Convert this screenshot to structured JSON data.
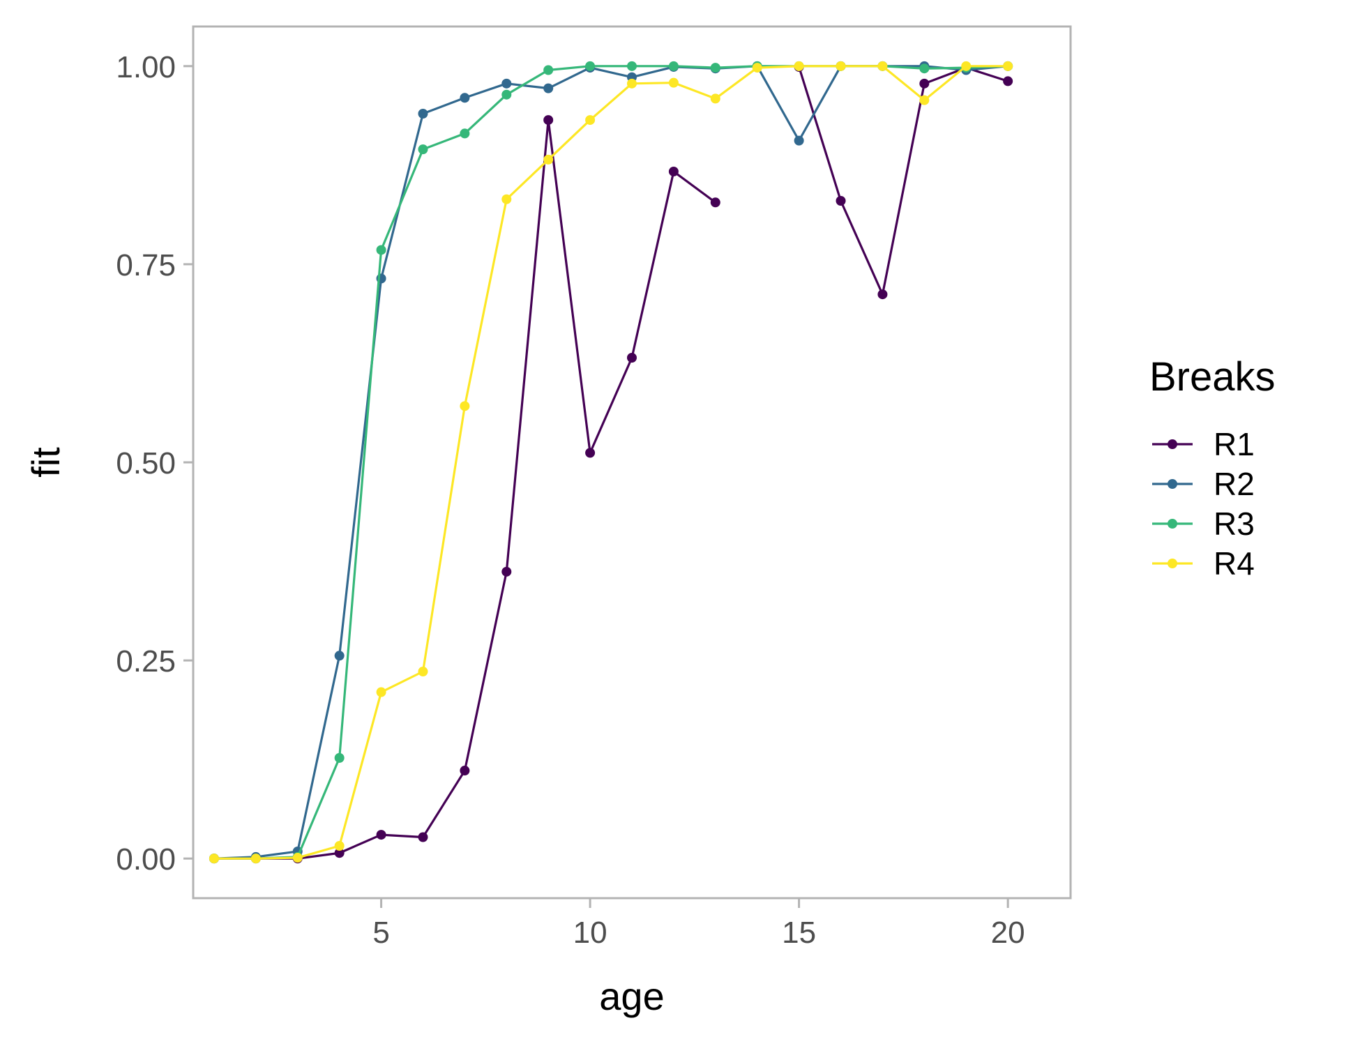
{
  "chart_data": {
    "type": "line",
    "xlabel": "age",
    "ylabel": "fit",
    "xlim": [
      0.5,
      21.5
    ],
    "ylim": [
      -0.05,
      1.05
    ],
    "xticks": [
      5,
      10,
      15,
      20
    ],
    "yticks": [
      0,
      0.25,
      0.5,
      0.75,
      1.0
    ],
    "ytick_labels": [
      "0.00",
      "0.25",
      "0.50",
      "0.75",
      "1.00"
    ],
    "grid": false,
    "legend": {
      "title": "Breaks",
      "position": "right"
    },
    "x": [
      1,
      2,
      3,
      4,
      5,
      6,
      7,
      8,
      9,
      10,
      11,
      12,
      13,
      14,
      15,
      16,
      17,
      18,
      19,
      20
    ],
    "series": [
      {
        "name": "R1",
        "color": "#440154",
        "values": [
          0.0,
          0.0,
          0.0,
          0.007,
          0.03,
          0.027,
          0.111,
          0.362,
          0.932,
          0.512,
          0.632,
          0.867,
          0.828,
          null,
          0.999,
          0.83,
          0.712,
          0.978,
          0.998,
          0.981
        ]
      },
      {
        "name": "R2",
        "color": "#31688e",
        "values": [
          0.0,
          0.002,
          0.009,
          0.256,
          0.732,
          0.94,
          0.96,
          0.978,
          0.972,
          0.998,
          0.986,
          0.999,
          0.997,
          1.0,
          0.906,
          1.0,
          1.0,
          1.0,
          0.995,
          1.0
        ]
      },
      {
        "name": "R3",
        "color": "#35b779",
        "values": [
          0.0,
          0.0,
          0.002,
          0.127,
          0.768,
          0.895,
          0.915,
          0.964,
          0.995,
          1.0,
          1.0,
          1.0,
          0.998,
          1.0,
          1.0,
          1.0,
          1.0,
          0.997,
          0.998,
          1.0
        ]
      },
      {
        "name": "R4",
        "color": "#fde725",
        "values": [
          0.0,
          0.0,
          0.001,
          0.016,
          0.21,
          0.236,
          0.571,
          0.832,
          0.882,
          0.932,
          0.978,
          0.979,
          0.959,
          0.998,
          1.0,
          1.0,
          1.0,
          0.957,
          1.0,
          1.0
        ]
      }
    ]
  }
}
